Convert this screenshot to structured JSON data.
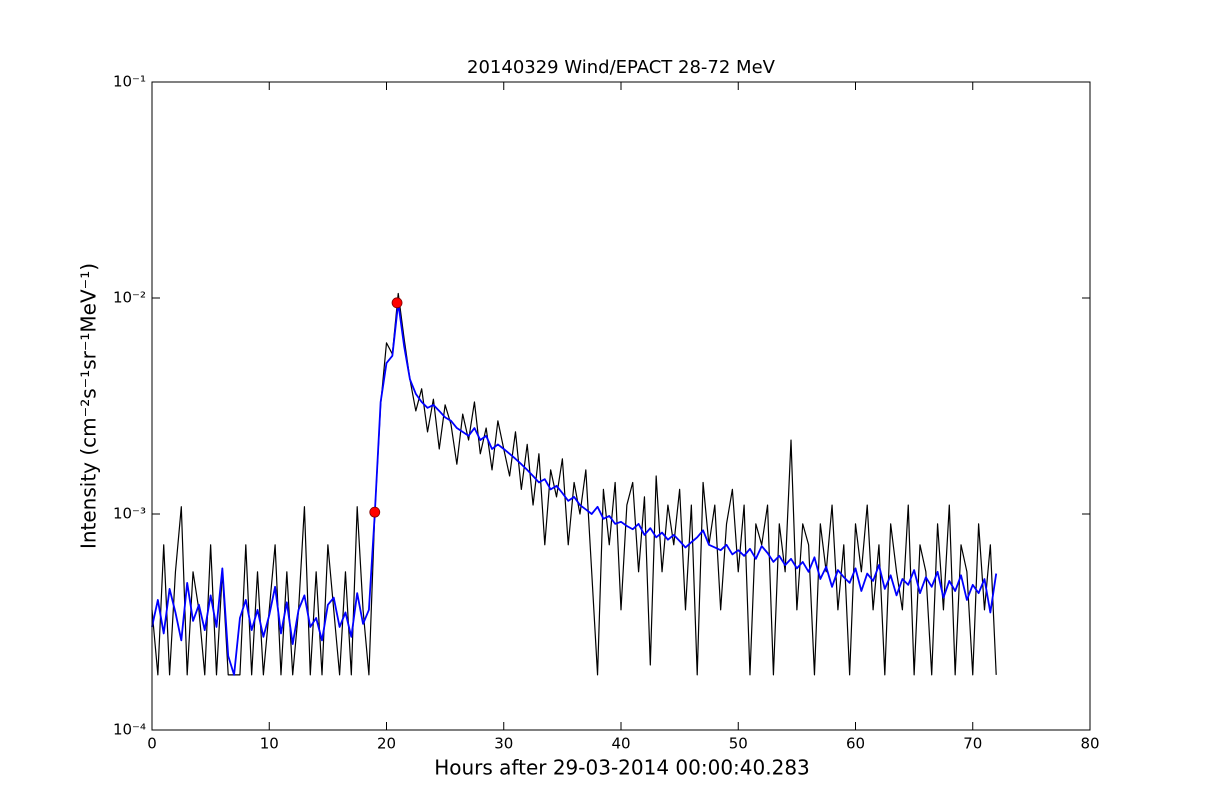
{
  "chart_data": {
    "type": "line",
    "title": "20140329 Wind/EPACT 28-72 MeV",
    "xlabel": "Hours after 29-03-2014 00:00:40.283",
    "ylabel": "Intensity (cm⁻²s⁻¹sr⁻¹MeV⁻¹)",
    "log_y": true,
    "xlim": [
      0,
      80
    ],
    "xticks": [
      0,
      10,
      20,
      30,
      40,
      50,
      60,
      70,
      80
    ],
    "ylim": [
      0.0001,
      0.1
    ],
    "yticks": [
      {
        "value": 0.0001,
        "label": "10⁻⁴"
      },
      {
        "value": 0.001,
        "label": "10⁻³"
      },
      {
        "value": 0.01,
        "label": "10⁻²"
      },
      {
        "value": 0.1,
        "label": "10⁻¹"
      }
    ],
    "x": [
      0,
      0.5,
      1,
      1.5,
      2,
      2.5,
      3,
      3.5,
      4,
      4.5,
      5,
      5.5,
      6,
      6.5,
      7,
      7.5,
      8,
      8.5,
      9,
      9.5,
      10,
      10.5,
      11,
      11.5,
      12,
      12.5,
      13,
      13.5,
      14,
      14.5,
      15,
      15.5,
      16,
      16.5,
      17,
      17.5,
      18,
      18.5,
      19,
      19.5,
      20,
      20.5,
      21,
      21.5,
      22,
      22.5,
      23,
      23.5,
      24,
      24.5,
      25,
      25.5,
      26,
      26.5,
      27,
      27.5,
      28,
      28.5,
      29,
      29.5,
      30,
      30.5,
      31,
      31.5,
      32,
      32.5,
      33,
      33.5,
      34,
      34.5,
      35,
      35.5,
      36,
      36.5,
      37,
      37.5,
      38,
      38.5,
      39,
      39.5,
      40,
      40.5,
      41,
      41.5,
      42,
      42.5,
      43,
      43.5,
      44,
      44.5,
      45,
      45.5,
      46,
      46.5,
      47,
      47.5,
      48,
      48.5,
      49,
      49.5,
      50,
      50.5,
      51,
      51.5,
      52,
      52.5,
      53,
      53.5,
      54,
      54.5,
      55,
      55.5,
      56,
      56.5,
      57,
      57.5,
      58,
      58.5,
      59,
      59.5,
      60,
      60.5,
      61,
      61.5,
      62,
      62.5,
      63,
      63.5,
      64,
      64.5,
      65,
      65.5,
      66,
      66.5,
      67,
      67.5,
      68,
      68.5,
      69,
      69.5,
      70,
      70.5,
      71,
      71.5,
      72
    ],
    "series": [
      {
        "color": "#000000",
        "values": [
          0.00036,
          0.00018,
          0.00072,
          0.00018,
          0.00054,
          0.00108,
          0.00018,
          0.00054,
          0.00036,
          0.00018,
          0.00072,
          0.00018,
          0.00054,
          0.00018,
          0.00018,
          0.00018,
          0.00072,
          0.00018,
          0.00054,
          0.00018,
          0.00036,
          0.00072,
          0.00018,
          0.00054,
          0.00018,
          0.00036,
          0.00108,
          0.00018,
          0.00054,
          0.00018,
          0.00072,
          0.00036,
          0.00018,
          0.00054,
          0.00018,
          0.00108,
          0.00036,
          0.00018,
          0.001,
          0.0032,
          0.0062,
          0.0055,
          0.0105,
          0.0065,
          0.0042,
          0.003,
          0.0038,
          0.0024,
          0.0034,
          0.002,
          0.0032,
          0.0026,
          0.0017,
          0.0029,
          0.0022,
          0.0033,
          0.0019,
          0.0025,
          0.0016,
          0.0027,
          0.002,
          0.0015,
          0.0024,
          0.0013,
          0.0021,
          0.0011,
          0.0019,
          0.00072,
          0.0016,
          0.0012,
          0.0018,
          0.00072,
          0.0014,
          0.001,
          0.0016,
          0.00054,
          0.00018,
          0.0013,
          0.00072,
          0.0014,
          0.00036,
          0.0011,
          0.0014,
          0.00054,
          0.0012,
          0.0002,
          0.0015,
          0.00054,
          0.0011,
          0.00072,
          0.0013,
          0.00036,
          0.0011,
          0.00018,
          0.0014,
          0.00072,
          0.0011,
          0.00036,
          0.0009,
          0.0013,
          0.00054,
          0.0011,
          0.00018,
          0.0009,
          0.00072,
          0.0011,
          0.00018,
          0.0009,
          0.00054,
          0.0022,
          0.00036,
          0.0009,
          0.00072,
          0.00018,
          0.0009,
          0.00054,
          0.0011,
          0.00036,
          0.00072,
          0.00018,
          0.0009,
          0.00054,
          0.0011,
          0.00036,
          0.00072,
          0.00018,
          0.0009,
          0.00054,
          0.00036,
          0.0011,
          0.00018,
          0.00072,
          0.00054,
          0.00018,
          0.0009,
          0.00036,
          0.0011,
          0.00018,
          0.00072,
          0.00054,
          0.00018,
          0.0009,
          0.00036,
          0.00072,
          0.00018
        ]
      },
      {
        "color": "#0000ff",
        "values": [
          0.0003,
          0.0004,
          0.00028,
          0.00045,
          0.00035,
          0.00026,
          0.00048,
          0.00032,
          0.00038,
          0.00029,
          0.00042,
          0.0003,
          0.00056,
          0.00022,
          0.00018,
          0.00033,
          0.0004,
          0.00029,
          0.00036,
          0.00027,
          0.00034,
          0.00046,
          0.00028,
          0.00039,
          0.00025,
          0.00036,
          0.00042,
          0.0003,
          0.00033,
          0.00026,
          0.00038,
          0.00041,
          0.0003,
          0.00035,
          0.00027,
          0.00043,
          0.00031,
          0.00036,
          0.001,
          0.0033,
          0.005,
          0.0054,
          0.0095,
          0.006,
          0.0042,
          0.0036,
          0.0033,
          0.0031,
          0.0032,
          0.003,
          0.0028,
          0.0027,
          0.0025,
          0.0024,
          0.0023,
          0.0025,
          0.0022,
          0.0023,
          0.002,
          0.0021,
          0.002,
          0.0019,
          0.0018,
          0.0017,
          0.0016,
          0.0015,
          0.0014,
          0.00145,
          0.0013,
          0.00135,
          0.00125,
          0.00115,
          0.0012,
          0.0011,
          0.00105,
          0.001,
          0.00108,
          0.00095,
          0.00098,
          0.0009,
          0.00092,
          0.00088,
          0.00085,
          0.0009,
          0.0008,
          0.00086,
          0.00078,
          0.00082,
          0.00076,
          0.0008,
          0.00075,
          0.0007,
          0.00074,
          0.00078,
          0.00084,
          0.00072,
          0.0007,
          0.00068,
          0.00072,
          0.00065,
          0.00068,
          0.00064,
          0.00069,
          0.00062,
          0.00071,
          0.00066,
          0.0006,
          0.00064,
          0.00058,
          0.00062,
          0.00056,
          0.0006,
          0.00054,
          0.00063,
          0.0005,
          0.00057,
          0.00046,
          0.00055,
          0.00051,
          0.00048,
          0.00056,
          0.00044,
          0.00053,
          0.00049,
          0.00058,
          0.00045,
          0.00052,
          0.00042,
          0.0005,
          0.00047,
          0.00055,
          0.00043,
          0.00051,
          0.00046,
          0.00054,
          0.00041,
          0.00049,
          0.00044,
          0.00052,
          0.0004,
          0.00047,
          0.00043,
          0.0005,
          0.00035,
          0.00053
        ]
      }
    ],
    "markers": {
      "color": "#ff0000",
      "x": [
        19,
        20.9
      ],
      "values": [
        0.00102,
        0.0095
      ]
    }
  }
}
